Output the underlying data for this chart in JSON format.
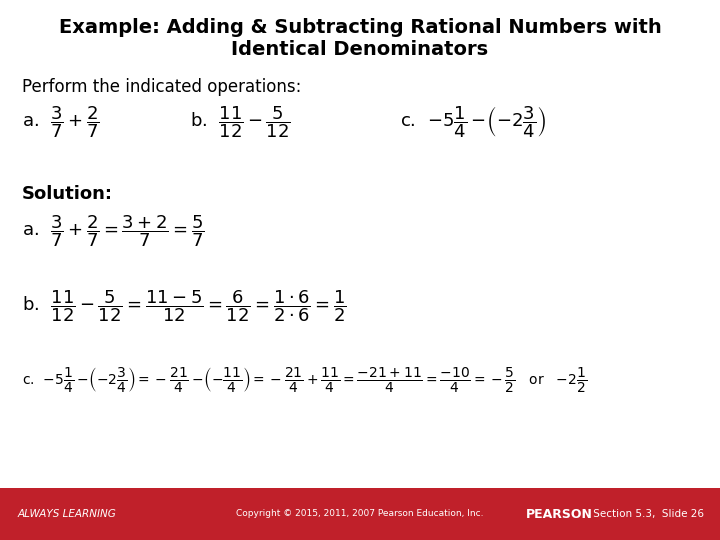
{
  "title_line1": "Example: Adding & Subtracting Rational Numbers with",
  "title_line2": "Identical Denominators",
  "bg_color": "#ffffff",
  "footer_bg": "#c0202a",
  "footer_left": "ALWAYS LEARNING",
  "footer_center": "Copyright © 2015, 2011, 2007 Pearson Education, Inc.",
  "footer_right_bold": "PEARSON",
  "footer_right_normal": " Section 5.3,  Slide 26",
  "title_fontsize": 14,
  "body_fontsize": 12,
  "math_fontsize": 12,
  "small_math_fontsize": 10
}
